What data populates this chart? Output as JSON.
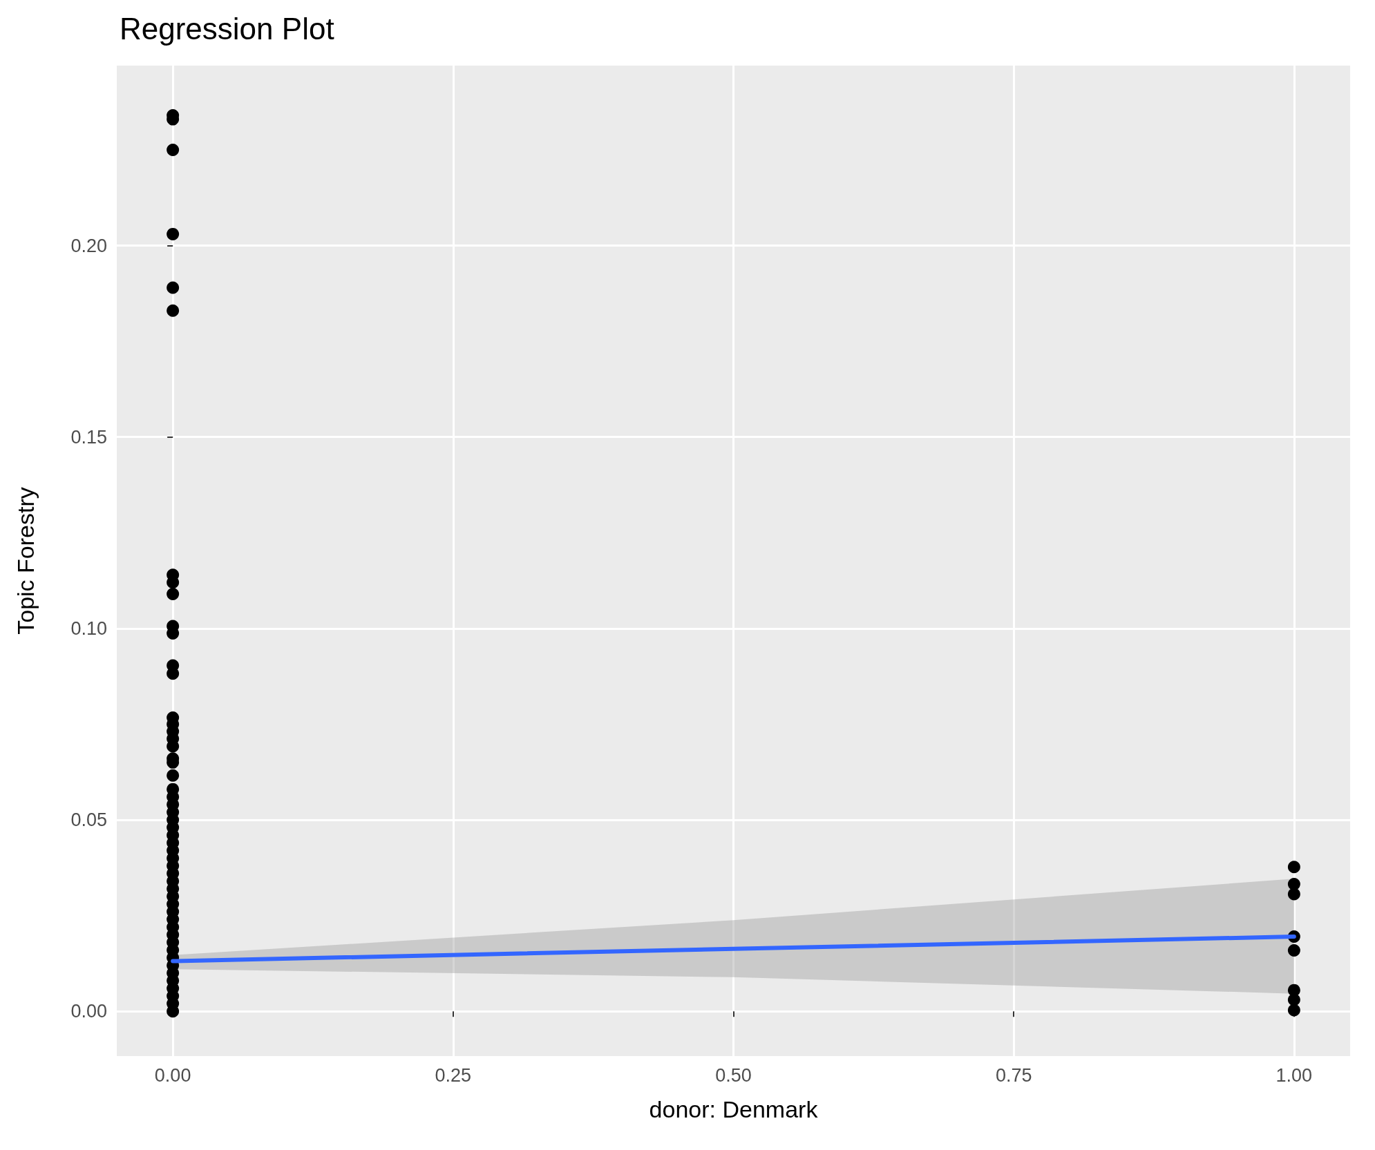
{
  "chart_data": {
    "type": "scatter",
    "title": "Regression Plot",
    "xlabel": "donor: Denmark",
    "ylabel": "Topic Forestry",
    "xlim": [
      -0.05,
      1.05
    ],
    "xticks": [
      {
        "value": 0,
        "label": "0.00"
      },
      {
        "value": 0.25,
        "label": "0.25"
      },
      {
        "value": 0.5,
        "label": "0.50"
      },
      {
        "value": 0.75,
        "label": "0.75"
      },
      {
        "value": 1,
        "label": "1.00"
      }
    ],
    "ylim": [
      -0.0117,
      0.247
    ],
    "yticks": [
      {
        "value": 0,
        "label": "0.00"
      },
      {
        "value": 0.05,
        "label": "0.05"
      },
      {
        "value": 0.1,
        "label": "0.10"
      },
      {
        "value": 0.15,
        "label": "0.15"
      },
      {
        "value": 0.2,
        "label": "0.20"
      }
    ],
    "grid": true,
    "series": [
      {
        "color": "#000000",
        "marker": "circle",
        "x": [
          0,
          0,
          0,
          0,
          0,
          0,
          0,
          0,
          0,
          0,
          0,
          0,
          0,
          0,
          0,
          0,
          0,
          0,
          0,
          0,
          0,
          0,
          0,
          0,
          0,
          0,
          0,
          0,
          0,
          0,
          0,
          0,
          0,
          0,
          0,
          0,
          0,
          0,
          0,
          0,
          0,
          0,
          0,
          0,
          0,
          0,
          0,
          0,
          0,
          0,
          0,
          1,
          1,
          1,
          1,
          1,
          1,
          1,
          1
        ],
        "values": [
          0.234,
          0.233,
          0.225,
          0.203,
          0.189,
          0.183,
          0.114,
          0.112,
          0.109,
          0.1006,
          0.0987,
          0.0903,
          0.0882,
          0.0767,
          0.075,
          0.0731,
          0.0712,
          0.0692,
          0.066,
          0.065,
          0.0616,
          0.058,
          0.056,
          0.054,
          0.052,
          0.05,
          0.048,
          0.046,
          0.044,
          0.042,
          0.04,
          0.038,
          0.036,
          0.034,
          0.032,
          0.03,
          0.028,
          0.026,
          0.024,
          0.022,
          0.02,
          0.018,
          0.016,
          0.014,
          0.012,
          0.01,
          0.008,
          0.006,
          0.004,
          0.002,
          0,
          0.0377,
          0.0332,
          0.0306,
          0.0195,
          0.0159,
          0.0055,
          0.003,
          0.0003
        ]
      },
      {
        "type": "line",
        "color": "#3366ff",
        "line_style": "solid",
        "marker": "none",
        "x": [
          0,
          0.5,
          1
        ],
        "values": [
          0.0131,
          0.0163,
          0.0195
        ],
        "lower": [
          0.011,
          0.0089,
          0.0046
        ],
        "upper": [
          0.0147,
          0.0238,
          0.0346
        ]
      }
    ]
  }
}
